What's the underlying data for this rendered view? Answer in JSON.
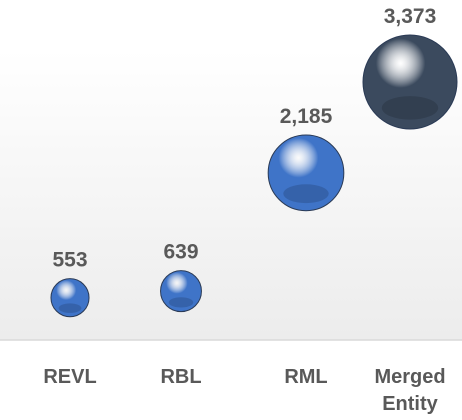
{
  "chart_data": {
    "type": "bubble",
    "categories": [
      "REVL",
      "RBL",
      "RML",
      "Merged Entity"
    ],
    "values": [
      553,
      639,
      2185,
      3373
    ],
    "value_labels": [
      "553",
      "639",
      "2,185",
      "3,373"
    ],
    "colors": [
      "#3f74c8",
      "#3f74c8",
      "#3f74c8",
      "#3b4a5e"
    ]
  }
}
